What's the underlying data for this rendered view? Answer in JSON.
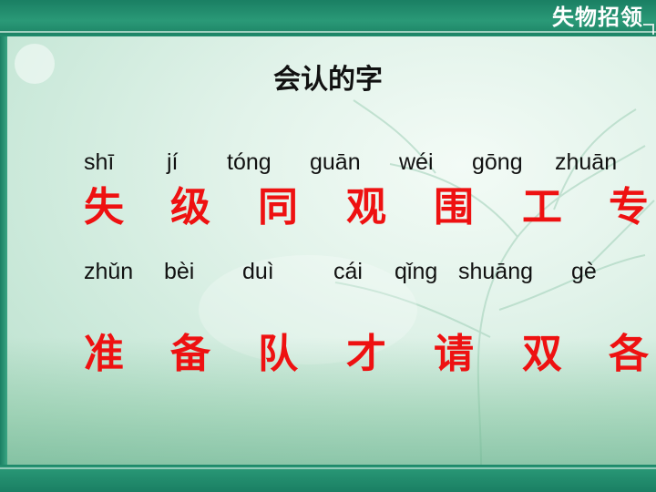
{
  "header": {
    "title": "失物招领"
  },
  "main": {
    "heading": "会认的字",
    "row1": {
      "pinyin": [
        "shī",
        "jí",
        "tóng",
        "guān",
        "wéi",
        "gōng",
        "zhuān"
      ],
      "hanzi": [
        "失",
        "级",
        "同",
        "观",
        "围",
        "工",
        "专"
      ]
    },
    "row2": {
      "pinyin": [
        "zhǔn",
        "bèi",
        "duì",
        "cái",
        "qǐng",
        "shuāng",
        "gè"
      ],
      "hanzi": [
        "准",
        "备",
        "队",
        "才",
        "请",
        "双",
        "各"
      ]
    }
  },
  "colors": {
    "accent": "#1f8a6b",
    "hanzi": "#ee1111",
    "text": "#111111"
  }
}
